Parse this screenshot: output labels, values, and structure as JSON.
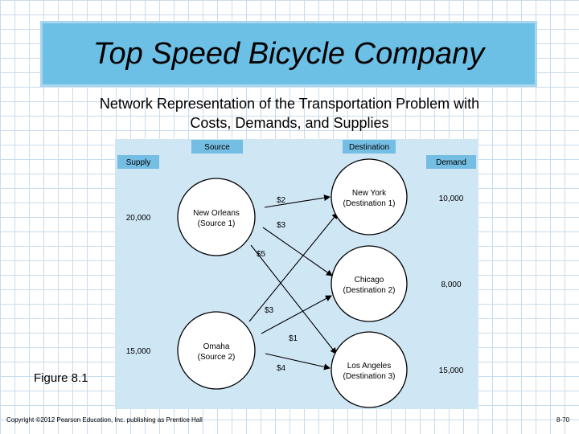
{
  "title": "Top Speed Bicycle Company",
  "subtitle_line1": "Network Representation of the Transportation Problem with",
  "subtitle_line2": "Costs, Demands, and Supplies",
  "headers": {
    "source": "Source",
    "destination": "Destination",
    "supply": "Supply",
    "demand": "Demand"
  },
  "sources": [
    {
      "name": "New Orleans",
      "sub": "(Source 1)",
      "supply": "20,000"
    },
    {
      "name": "Omaha",
      "sub": "(Source 2)",
      "supply": "15,000"
    }
  ],
  "destinations": [
    {
      "name": "New York",
      "sub": "(Destination 1)",
      "demand": "10,000"
    },
    {
      "name": "Chicago",
      "sub": "(Destination 2)",
      "demand": "8,000"
    },
    {
      "name": "Los Angeles",
      "sub": "(Destination 3)",
      "demand": "15,000"
    }
  ],
  "costs": [
    "$2",
    "$3",
    "$5",
    "$3",
    "$1",
    "$4"
  ],
  "figure_label": "Figure 8.1",
  "copyright": "Copyright ©2012 Pearson Education, Inc. publishing as Prentice Hall",
  "page_number": "8-70",
  "colors": {
    "title_bg": "#6cc0e6",
    "panel_bg": "#cfe6f5",
    "header_bg": "#74bde3"
  }
}
